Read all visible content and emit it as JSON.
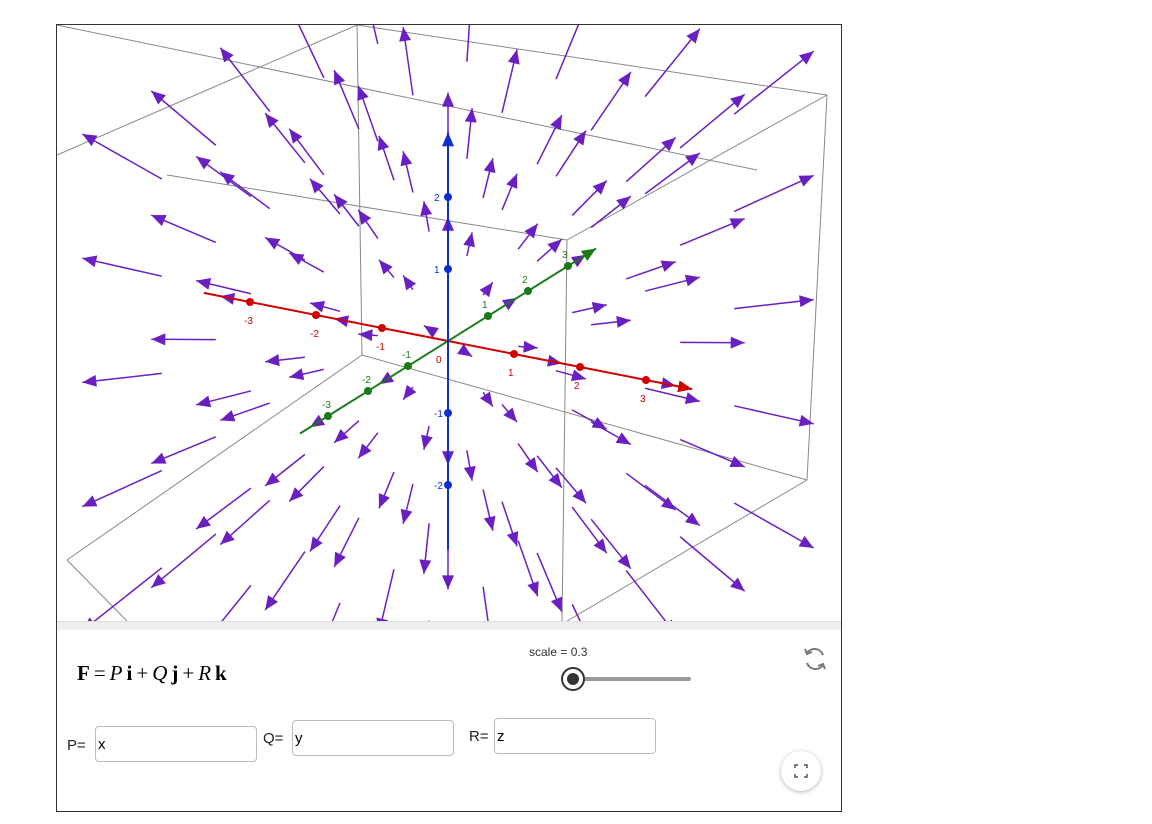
{
  "axes": {
    "x": {
      "ticks": [
        "-3",
        "-2",
        "-1",
        "1",
        "2",
        "3"
      ]
    },
    "y": {
      "ticks": [
        "-3",
        "-2",
        "-1",
        "1",
        "2",
        "3"
      ]
    },
    "z": {
      "ticks": [
        "-2",
        "-1",
        "1",
        "2"
      ]
    },
    "origin": "0"
  },
  "formula": [
    "F",
    "=",
    "P",
    "i",
    "+",
    "Q",
    "j",
    "+",
    "R",
    "k"
  ],
  "slider": {
    "label": "scale = 0.3"
  },
  "inputs": [
    {
      "label": "P=",
      "value": "x"
    },
    {
      "label": "Q=",
      "value": "y"
    },
    {
      "label": "R=",
      "value": "z"
    }
  ]
}
